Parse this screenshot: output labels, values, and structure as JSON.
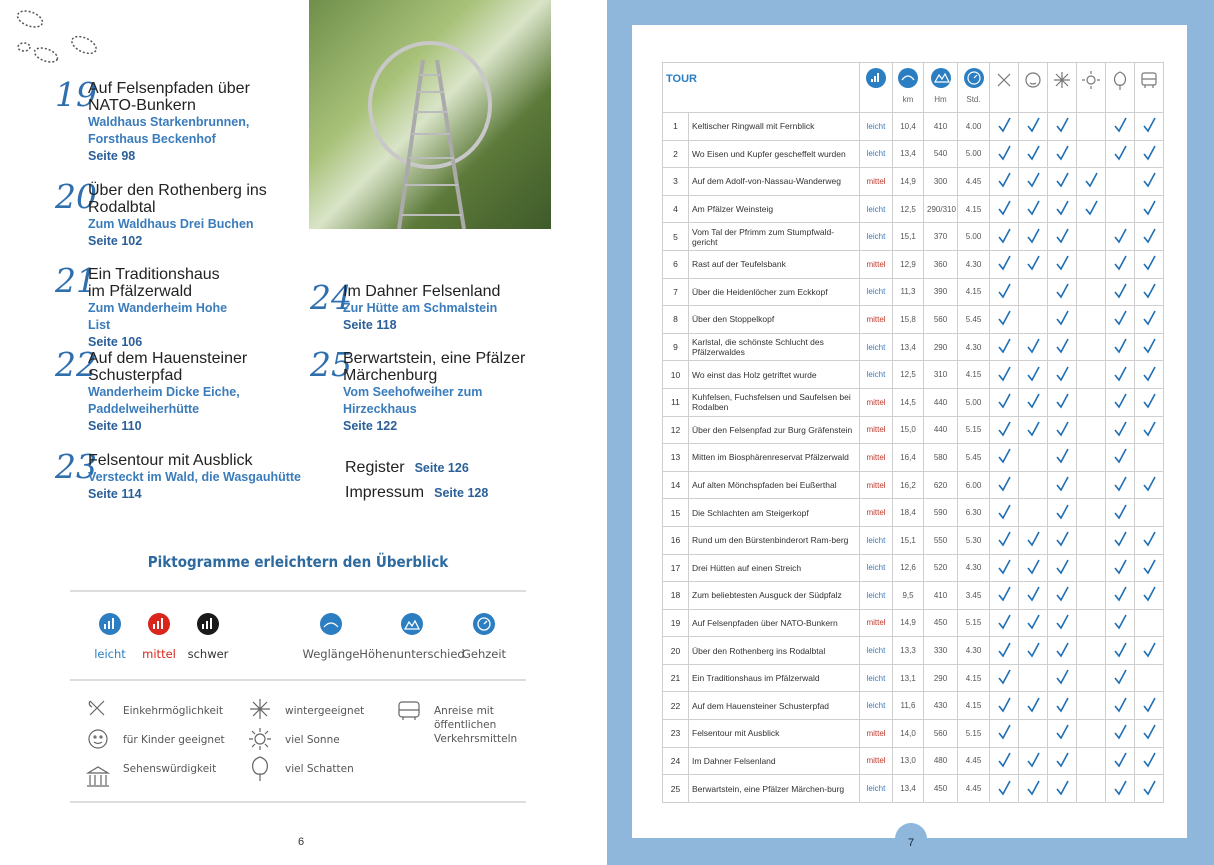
{
  "left_page": {
    "toc": [
      {
        "number": "19",
        "title": "Auf Felsenpfaden über NATO-Bunkern",
        "subtitle": "Waldhaus Starkenbrunnen, Forsthaus Beckenhof",
        "page": "Seite 98"
      },
      {
        "number": "20",
        "title": "Über den Rothenberg ins Rodalbtal",
        "subtitle": "Zum Waldhaus Drei Buchen",
        "page": "Seite 102"
      },
      {
        "number": "21",
        "title": "Ein Traditionshaus im Pfälzerwald",
        "subtitle": "Zum Wanderheim Hohe List",
        "page": "Seite 106"
      },
      {
        "number": "22",
        "title": "Auf dem Hauensteiner Schusterpfad",
        "subtitle": "Wanderheim Dicke Eiche, Paddelweiherhütte",
        "page": "Seite 110"
      },
      {
        "number": "23",
        "title": "Felsentour mit Ausblick",
        "subtitle": "Versteckt im Wald, die Wasgauhütte",
        "page": "Seite 114"
      },
      {
        "number": "24",
        "title": "Im Dahner Felsenland",
        "subtitle": "Zur Hütte am Schmalstein",
        "page": "Seite 118"
      },
      {
        "number": "25",
        "title": "Berwartstein, eine Pfälzer Märchenburg",
        "subtitle": "Vom Seehofweiher zum Hirzeckhaus",
        "page": "Seite 122"
      }
    ],
    "extras": [
      {
        "label": "Register",
        "page": "Seite 126"
      },
      {
        "label": "Impressum",
        "page": "Seite 128"
      }
    ],
    "legend": {
      "title": "Piktogramme erleichtern den Überblick",
      "difficulty": [
        "leicht",
        "mittel",
        "schwer"
      ],
      "measures": [
        "Weglänge",
        "Höhenunterschied",
        "Gehzeit"
      ],
      "features": [
        "Einkehrmöglichkeit",
        "für Kinder geeignet",
        "Sehenswürdigkeit",
        "wintergeeignet",
        "viel Sonne",
        "viel Schatten",
        "Anreise mit öffentlichen Verkehrsmitteln"
      ]
    },
    "page_number": "6"
  },
  "right_page": {
    "table": {
      "header": {
        "tour": "TOUR",
        "km": "km",
        "hm": "Hm",
        "std": "Std."
      },
      "rows": [
        [
          "1",
          "Keltischer Ringwall mit Fernblick",
          "leicht",
          "10,4",
          "410",
          "4.00",
          [
            true,
            true,
            true,
            false,
            true,
            true
          ]
        ],
        [
          "2",
          "Wo Eisen und Kupfer gescheffelt wurden",
          "leicht",
          "13,4",
          "540",
          "5.00",
          [
            true,
            true,
            true,
            false,
            true,
            true
          ]
        ],
        [
          "3",
          "Auf dem Adolf-von-Nassau-Wanderweg",
          "mittel",
          "14,9",
          "300",
          "4.45",
          [
            true,
            true,
            true,
            true,
            false,
            true
          ]
        ],
        [
          "4",
          "Am Pfälzer Weinsteig",
          "leicht",
          "12,5",
          "290/310",
          "4.15",
          [
            true,
            true,
            true,
            true,
            false,
            true
          ]
        ],
        [
          "5",
          "Vom Tal der Pfrimm zum Stumpfwald-gericht",
          "leicht",
          "15,1",
          "370",
          "5.00",
          [
            true,
            true,
            true,
            false,
            true,
            true
          ]
        ],
        [
          "6",
          "Rast auf der Teufelsbank",
          "mittel",
          "12,9",
          "360",
          "4.30",
          [
            true,
            true,
            true,
            false,
            true,
            true
          ]
        ],
        [
          "7",
          "Über die Heidenlöcher zum Eckkopf",
          "leicht",
          "11,3",
          "390",
          "4.15",
          [
            true,
            false,
            true,
            false,
            true,
            true
          ]
        ],
        [
          "8",
          "Über den Stoppelkopf",
          "mittel",
          "15,8",
          "560",
          "5.45",
          [
            true,
            false,
            true,
            false,
            true,
            true
          ]
        ],
        [
          "9",
          "Karlstal, die schönste Schlucht des Pfälzerwaldes",
          "leicht",
          "13,4",
          "290",
          "4.30",
          [
            true,
            true,
            true,
            false,
            true,
            true
          ]
        ],
        [
          "10",
          "Wo einst das Holz getriftet wurde",
          "leicht",
          "12,5",
          "310",
          "4.15",
          [
            true,
            true,
            true,
            false,
            true,
            true
          ]
        ],
        [
          "11",
          "Kuhfelsen, Fuchsfelsen und Saufelsen bei Rodalben",
          "mittel",
          "14,5",
          "440",
          "5.00",
          [
            true,
            true,
            true,
            false,
            true,
            true
          ]
        ],
        [
          "12",
          "Über den Felsenpfad zur Burg Gräfenstein",
          "mittel",
          "15,0",
          "440",
          "5.15",
          [
            true,
            true,
            true,
            false,
            true,
            true
          ]
        ],
        [
          "13",
          "Mitten im Biosphärenreservat Pfälzerwald",
          "mittel",
          "16,4",
          "580",
          "5.45",
          [
            true,
            false,
            true,
            false,
            true,
            false
          ]
        ],
        [
          "14",
          "Auf alten Mönchspfaden bei Eußerthal",
          "mittel",
          "16,2",
          "620",
          "6.00",
          [
            true,
            false,
            true,
            false,
            true,
            true
          ]
        ],
        [
          "15",
          "Die Schlachten am Steigerkopf",
          "mittel",
          "18,4",
          "590",
          "6.30",
          [
            true,
            false,
            true,
            false,
            true,
            false
          ]
        ],
        [
          "16",
          "Rund um den Bürstenbinderort Ram-berg",
          "leicht",
          "15,1",
          "550",
          "5.30",
          [
            true,
            true,
            true,
            false,
            true,
            true
          ]
        ],
        [
          "17",
          "Drei Hütten auf einen Streich",
          "leicht",
          "12,6",
          "520",
          "4.30",
          [
            true,
            true,
            true,
            false,
            true,
            true
          ]
        ],
        [
          "18",
          "Zum beliebtesten Ausguck der Südpfalz",
          "leicht",
          "9,5",
          "410",
          "3.45",
          [
            true,
            true,
            true,
            false,
            true,
            true
          ]
        ],
        [
          "19",
          "Auf Felsenpfaden über NATO-Bunkern",
          "mittel",
          "14,9",
          "450",
          "5.15",
          [
            true,
            true,
            true,
            false,
            true,
            false
          ]
        ],
        [
          "20",
          "Über den Rothenberg ins Rodalbtal",
          "leicht",
          "13,3",
          "330",
          "4.30",
          [
            true,
            true,
            true,
            false,
            true,
            true
          ]
        ],
        [
          "21",
          "Ein Traditionshaus im Pfälzerwald",
          "leicht",
          "13,1",
          "290",
          "4.15",
          [
            true,
            false,
            true,
            false,
            true,
            false
          ]
        ],
        [
          "22",
          "Auf dem Hauensteiner Schusterpfad",
          "leicht",
          "11,6",
          "430",
          "4.15",
          [
            true,
            true,
            true,
            false,
            true,
            true
          ]
        ],
        [
          "23",
          "Felsentour mit Ausblick",
          "mittel",
          "14,0",
          "560",
          "5.15",
          [
            true,
            false,
            true,
            false,
            true,
            true
          ]
        ],
        [
          "24",
          "Im Dahner Felsenland",
          "mittel",
          "13,0",
          "480",
          "4.45",
          [
            true,
            true,
            true,
            false,
            true,
            true
          ]
        ],
        [
          "25",
          "Berwartstein, eine Pfälzer Märchen-burg",
          "leicht",
          "13,4",
          "450",
          "4.45",
          [
            true,
            true,
            true,
            false,
            true,
            true
          ]
        ]
      ]
    },
    "page_number": "7"
  }
}
